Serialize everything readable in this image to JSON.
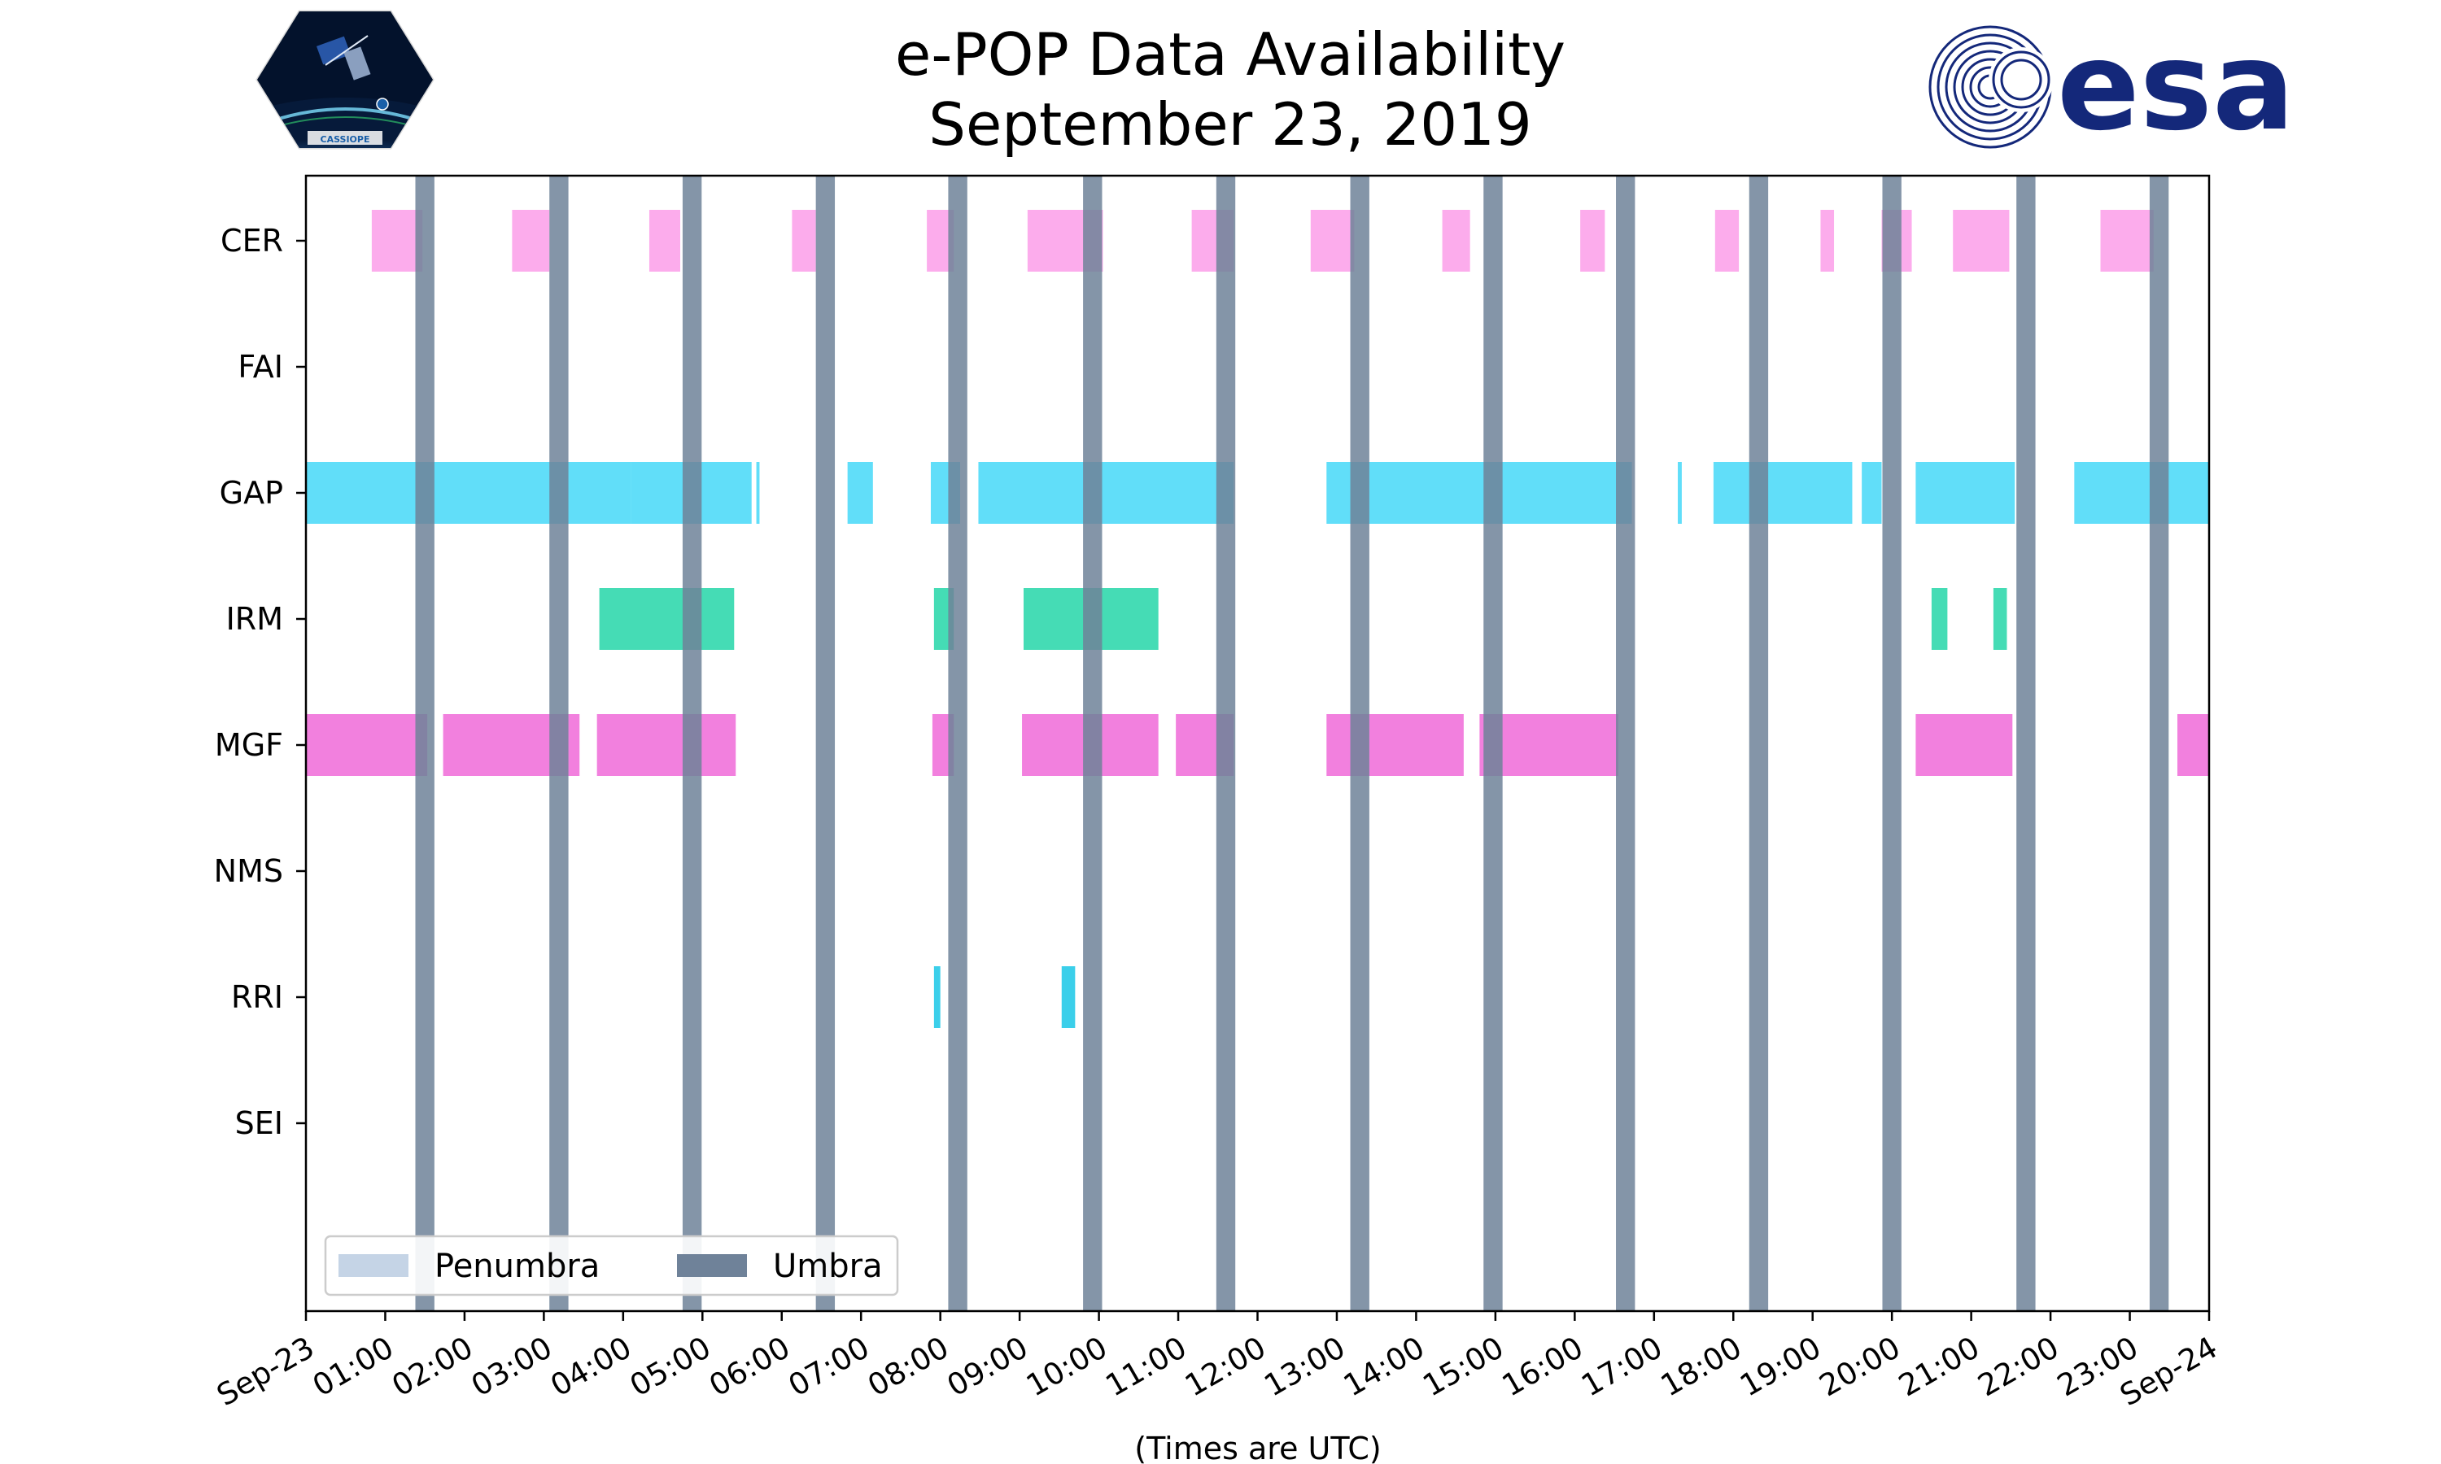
{
  "logos": {
    "cassiope": {
      "label": "CASSIOPE"
    },
    "esa": {
      "label": "esa"
    }
  },
  "colors": {
    "CER": "#fb9ee9",
    "GAP": "#45d8f8",
    "IRM": "#25d6a8",
    "MGF": "#f06ad8",
    "RRI": "#19c7e6",
    "umbra": "#6f8299",
    "penumbra": "#c5d4e6"
  },
  "chart_data": {
    "type": "timeline",
    "title": [
      "e-POP Data Availability",
      "September 23, 2019"
    ],
    "xlabel": "(Times are UTC)",
    "ylabel": "",
    "xlim_hours": [
      0,
      24
    ],
    "x_ticks": [
      {
        "h": 0,
        "label": "Sep-23"
      },
      {
        "h": 1,
        "label": "01:00"
      },
      {
        "h": 2,
        "label": "02:00"
      },
      {
        "h": 3,
        "label": "03:00"
      },
      {
        "h": 4,
        "label": "04:00"
      },
      {
        "h": 5,
        "label": "05:00"
      },
      {
        "h": 6,
        "label": "06:00"
      },
      {
        "h": 7,
        "label": "07:00"
      },
      {
        "h": 8,
        "label": "08:00"
      },
      {
        "h": 9,
        "label": "09:00"
      },
      {
        "h": 10,
        "label": "10:00"
      },
      {
        "h": 11,
        "label": "11:00"
      },
      {
        "h": 12,
        "label": "12:00"
      },
      {
        "h": 13,
        "label": "13:00"
      },
      {
        "h": 14,
        "label": "14:00"
      },
      {
        "h": 15,
        "label": "15:00"
      },
      {
        "h": 16,
        "label": "16:00"
      },
      {
        "h": 17,
        "label": "17:00"
      },
      {
        "h": 18,
        "label": "18:00"
      },
      {
        "h": 19,
        "label": "19:00"
      },
      {
        "h": 20,
        "label": "20:00"
      },
      {
        "h": 21,
        "label": "21:00"
      },
      {
        "h": 22,
        "label": "22:00"
      },
      {
        "h": 23,
        "label": "23:00"
      },
      {
        "h": 24,
        "label": "Sep-24"
      }
    ],
    "instruments": [
      "CER",
      "FAI",
      "GAP",
      "IRM",
      "MGF",
      "NMS",
      "RRI",
      "SEI"
    ],
    "intervals": {
      "CER": [
        [
          0.83,
          1.47
        ],
        [
          2.6,
          3.07
        ],
        [
          4.33,
          4.72
        ],
        [
          6.13,
          6.43
        ],
        [
          7.83,
          8.17
        ],
        [
          9.1,
          10.05
        ],
        [
          11.17,
          11.7
        ],
        [
          12.67,
          13.22
        ],
        [
          14.33,
          14.68
        ],
        [
          16.07,
          16.38
        ],
        [
          17.77,
          18.07
        ],
        [
          19.1,
          19.27
        ],
        [
          19.87,
          20.25
        ],
        [
          20.77,
          21.48
        ],
        [
          22.63,
          23.3
        ]
      ],
      "FAI": [],
      "GAP": [
        [
          0,
          4.1
        ],
        [
          4.1,
          5.62
        ],
        [
          5.68,
          5.72
        ],
        [
          6.83,
          7.15
        ],
        [
          7.88,
          8.25
        ],
        [
          8.48,
          11.7
        ],
        [
          12.87,
          16.72
        ],
        [
          17.3,
          17.35
        ],
        [
          17.75,
          19.5
        ],
        [
          19.62,
          19.87
        ],
        [
          20.3,
          21.55
        ],
        [
          22.3,
          24
        ]
      ],
      "IRM": [
        [
          3.7,
          5.4
        ],
        [
          7.92,
          8.17
        ],
        [
          9.05,
          10.75
        ],
        [
          20.5,
          20.7
        ],
        [
          21.28,
          21.45
        ]
      ],
      "MGF": [
        [
          0,
          1.53
        ],
        [
          1.73,
          3.45
        ],
        [
          3.67,
          5.42
        ],
        [
          7.9,
          8.17
        ],
        [
          9.03,
          10.75
        ],
        [
          10.97,
          11.7
        ],
        [
          12.87,
          14.6
        ],
        [
          14.8,
          16.55
        ],
        [
          20.3,
          21.52
        ],
        [
          23.6,
          24
        ]
      ],
      "NMS": [],
      "RRI": [
        [
          7.92,
          8.0
        ],
        [
          9.53,
          9.7
        ]
      ],
      "SEI": []
    },
    "umbra": [
      [
        1.38,
        1.62
      ],
      [
        3.07,
        3.31
      ],
      [
        4.75,
        4.99
      ],
      [
        6.43,
        6.67
      ],
      [
        8.1,
        8.34
      ],
      [
        9.8,
        10.04
      ],
      [
        11.48,
        11.72
      ],
      [
        13.17,
        13.41
      ],
      [
        14.85,
        15.09
      ],
      [
        16.52,
        16.76
      ],
      [
        18.2,
        18.44
      ],
      [
        19.88,
        20.12
      ],
      [
        21.57,
        21.81
      ],
      [
        23.25,
        23.49
      ]
    ],
    "penumbra": [],
    "legend": {
      "position": "lower-left",
      "entries": [
        {
          "label": "Penumbra",
          "color": "#c5d4e6"
        },
        {
          "label": "Umbra",
          "color": "#6f8299"
        }
      ]
    }
  }
}
